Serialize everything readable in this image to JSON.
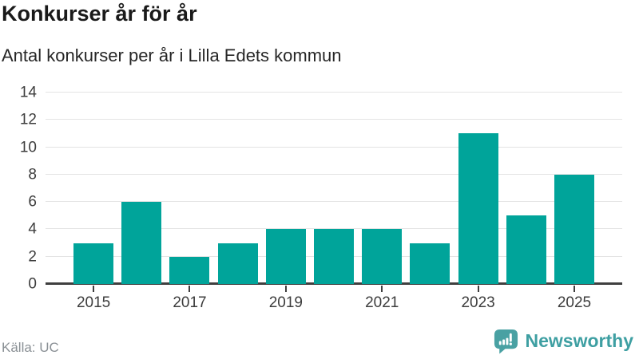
{
  "header": {
    "title": "Konkurser år för år",
    "subtitle": "Antal konkurser per år i Lilla Edets kommun"
  },
  "chart_data": {
    "type": "bar",
    "title": "Konkurser år för år",
    "subtitle": "Antal konkurser per år i Lilla Edets kommun",
    "categories": [
      "2015",
      "2016",
      "2017",
      "2018",
      "2019",
      "2020",
      "2021",
      "2022",
      "2023",
      "2024",
      "2025"
    ],
    "values": [
      3,
      6,
      2,
      3,
      4,
      4,
      4,
      3,
      11,
      5,
      8
    ],
    "xlabel": "",
    "ylabel": "",
    "ylim": [
      0,
      14
    ],
    "y_ticks": [
      0,
      2,
      4,
      6,
      8,
      10,
      12,
      14
    ],
    "x_tick_labels": [
      "2015",
      "2017",
      "2019",
      "2021",
      "2023",
      "2025"
    ],
    "grid": true,
    "legend": "none"
  },
  "footer": {
    "source": "Källa: UC",
    "brand": "Newsworthy"
  },
  "colors": {
    "bar": "#00a49a",
    "grid": "#e4e4e4",
    "axis": "#3f3f3f",
    "axistext": "#3d3d3d",
    "text": "#1a1a1a",
    "subtext": "#262626",
    "muted": "#8a9095",
    "logo": "#49a1a3",
    "logotext": "#3e9fa2"
  },
  "icons": {
    "brand_logo": "newsworthy-speech-bubble-bar-chart-icon"
  }
}
